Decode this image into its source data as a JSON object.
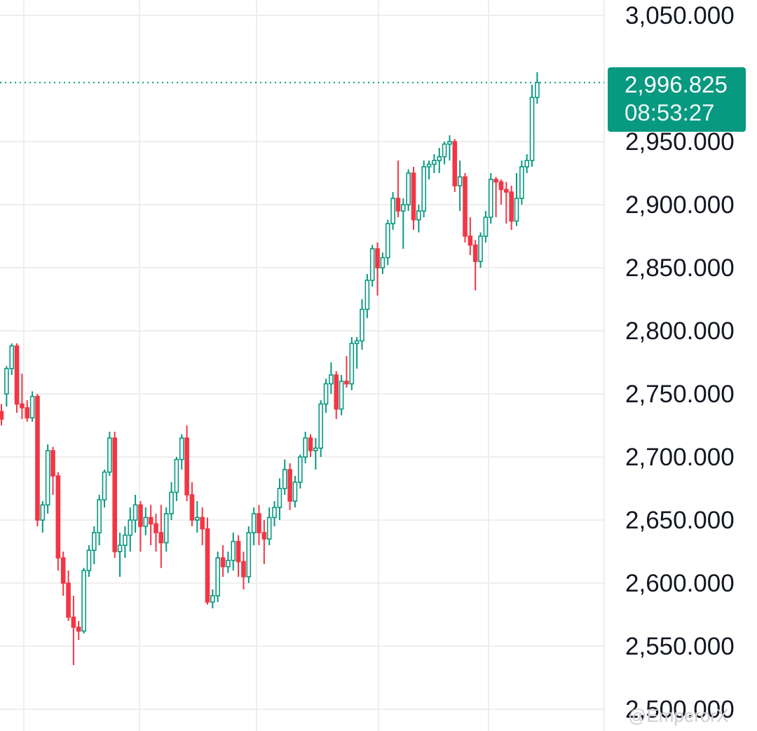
{
  "colors": {
    "up": "#089981",
    "down": "#f23645",
    "grid": "#eeeeee",
    "axis_text": "#131722",
    "price_line": "#089981",
    "price_tag_bg": "#089981"
  },
  "price_tag": {
    "price": "2,996.825",
    "countdown": "08:53:27"
  },
  "watermark": "@EmperorX",
  "chart_data": {
    "type": "candlestick",
    "y_axis": {
      "position": "right",
      "ylim": [
        2490,
        3060
      ],
      "ticks": [
        "3,050.000",
        "2,950.000",
        "2,900.000",
        "2,850.000",
        "2,800.000",
        "2,750.000",
        "2,700.000",
        "2,650.000",
        "2,600.000",
        "2,550.000",
        "2,500.000"
      ],
      "tick_values": [
        3050,
        2950,
        2900,
        2850,
        2800,
        2750,
        2700,
        2650,
        2600,
        2550,
        2500
      ]
    },
    "last_price": 2996.825,
    "grid": true,
    "candles": [
      [
        2736,
        2742,
        2725,
        2730
      ],
      [
        2750,
        2772,
        2740,
        2770
      ],
      [
        2770,
        2790,
        2765,
        2788
      ],
      [
        2788,
        2790,
        2735,
        2742
      ],
      [
        2742,
        2766,
        2730,
        2739
      ],
      [
        2739,
        2745,
        2728,
        2731
      ],
      [
        2731,
        2752,
        2728,
        2748
      ],
      [
        2748,
        2750,
        2645,
        2650
      ],
      [
        2650,
        2665,
        2640,
        2662
      ],
      [
        2662,
        2710,
        2655,
        2705
      ],
      [
        2705,
        2708,
        2670,
        2685
      ],
      [
        2685,
        2688,
        2610,
        2620
      ],
      [
        2620,
        2625,
        2590,
        2600
      ],
      [
        2600,
        2610,
        2570,
        2573
      ],
      [
        2573,
        2590,
        2535,
        2565
      ],
      [
        2565,
        2570,
        2555,
        2562
      ],
      [
        2562,
        2612,
        2560,
        2610
      ],
      [
        2610,
        2630,
        2605,
        2626
      ],
      [
        2626,
        2645,
        2615,
        2640
      ],
      [
        2640,
        2670,
        2630,
        2666
      ],
      [
        2666,
        2690,
        2660,
        2688
      ],
      [
        2688,
        2720,
        2685,
        2715
      ],
      [
        2715,
        2720,
        2620,
        2625
      ],
      [
        2625,
        2640,
        2605,
        2630
      ],
      [
        2630,
        2645,
        2620,
        2638
      ],
      [
        2638,
        2660,
        2625,
        2650
      ],
      [
        2650,
        2670,
        2640,
        2662
      ],
      [
        2662,
        2665,
        2625,
        2645
      ],
      [
        2645,
        2660,
        2638,
        2652
      ],
      [
        2652,
        2662,
        2630,
        2647
      ],
      [
        2647,
        2655,
        2625,
        2640
      ],
      [
        2640,
        2662,
        2612,
        2632
      ],
      [
        2632,
        2660,
        2625,
        2655
      ],
      [
        2655,
        2680,
        2650,
        2672
      ],
      [
        2672,
        2700,
        2665,
        2698
      ],
      [
        2698,
        2718,
        2690,
        2715
      ],
      [
        2715,
        2725,
        2665,
        2670
      ],
      [
        2670,
        2680,
        2645,
        2650
      ],
      [
        2650,
        2665,
        2640,
        2652
      ],
      [
        2652,
        2660,
        2630,
        2643
      ],
      [
        2643,
        2652,
        2583,
        2585
      ],
      [
        2585,
        2595,
        2580,
        2590
      ],
      [
        2590,
        2625,
        2585,
        2620
      ],
      [
        2620,
        2630,
        2605,
        2613
      ],
      [
        2613,
        2625,
        2608,
        2618
      ],
      [
        2618,
        2640,
        2610,
        2633
      ],
      [
        2633,
        2638,
        2605,
        2617
      ],
      [
        2617,
        2625,
        2595,
        2605
      ],
      [
        2605,
        2645,
        2600,
        2640
      ],
      [
        2640,
        2660,
        2630,
        2655
      ],
      [
        2655,
        2662,
        2630,
        2640
      ],
      [
        2640,
        2650,
        2615,
        2635
      ],
      [
        2635,
        2660,
        2630,
        2652
      ],
      [
        2652,
        2665,
        2645,
        2660
      ],
      [
        2660,
        2683,
        2650,
        2675
      ],
      [
        2675,
        2698,
        2670,
        2690
      ],
      [
        2690,
        2695,
        2658,
        2665
      ],
      [
        2665,
        2685,
        2660,
        2680
      ],
      [
        2680,
        2702,
        2675,
        2700
      ],
      [
        2700,
        2720,
        2695,
        2715
      ],
      [
        2715,
        2718,
        2700,
        2705
      ],
      [
        2705,
        2715,
        2690,
        2707
      ],
      [
        2707,
        2745,
        2700,
        2742
      ],
      [
        2742,
        2762,
        2735,
        2758
      ],
      [
        2758,
        2775,
        2750,
        2765
      ],
      [
        2765,
        2768,
        2730,
        2738
      ],
      [
        2738,
        2765,
        2733,
        2760
      ],
      [
        2760,
        2780,
        2755,
        2758
      ],
      [
        2758,
        2795,
        2753,
        2790
      ],
      [
        2790,
        2795,
        2770,
        2792
      ],
      [
        2792,
        2825,
        2785,
        2817
      ],
      [
        2817,
        2845,
        2810,
        2840
      ],
      [
        2840,
        2868,
        2835,
        2865
      ],
      [
        2865,
        2870,
        2828,
        2850
      ],
      [
        2850,
        2862,
        2845,
        2858
      ],
      [
        2858,
        2888,
        2852,
        2885
      ],
      [
        2885,
        2910,
        2880,
        2905
      ],
      [
        2905,
        2935,
        2890,
        2895
      ],
      [
        2895,
        2905,
        2865,
        2900
      ],
      [
        2900,
        2928,
        2895,
        2925
      ],
      [
        2925,
        2930,
        2880,
        2888
      ],
      [
        2888,
        2900,
        2878,
        2895
      ],
      [
        2895,
        2935,
        2890,
        2930
      ],
      [
        2930,
        2935,
        2920,
        2932
      ],
      [
        2932,
        2940,
        2925,
        2935
      ],
      [
        2935,
        2945,
        2925,
        2938
      ],
      [
        2938,
        2950,
        2932,
        2948
      ],
      [
        2948,
        2955,
        2935,
        2950
      ],
      [
        2950,
        2952,
        2910,
        2915
      ],
      [
        2915,
        2935,
        2895,
        2922
      ],
      [
        2922,
        2925,
        2870,
        2875
      ],
      [
        2875,
        2890,
        2860,
        2868
      ],
      [
        2868,
        2872,
        2832,
        2855
      ],
      [
        2855,
        2878,
        2850,
        2875
      ],
      [
        2875,
        2895,
        2870,
        2890
      ],
      [
        2890,
        2925,
        2885,
        2920
      ],
      [
        2920,
        2922,
        2890,
        2918
      ],
      [
        2918,
        2920,
        2900,
        2912
      ],
      [
        2912,
        2918,
        2885,
        2910
      ],
      [
        2910,
        2915,
        2880,
        2887
      ],
      [
        2887,
        2925,
        2883,
        2905
      ],
      [
        2905,
        2935,
        2900,
        2930
      ],
      [
        2930,
        2940,
        2925,
        2935
      ],
      [
        2935,
        2995,
        2930,
        2985
      ],
      [
        2985,
        3005,
        2980,
        2996.825
      ]
    ]
  }
}
